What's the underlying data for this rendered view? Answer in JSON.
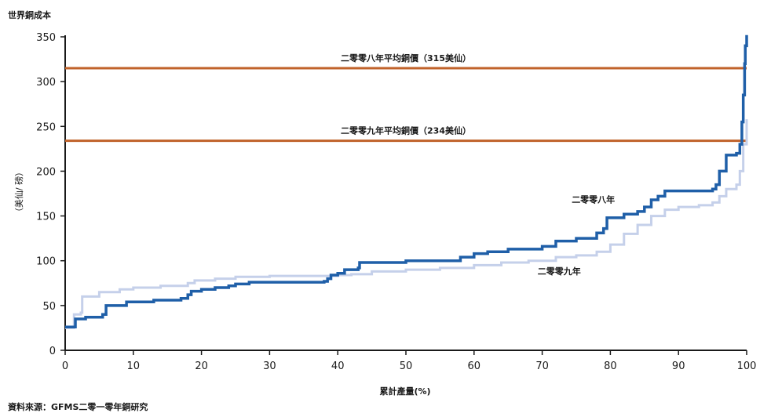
{
  "chart_data": {
    "type": "line",
    "title": "世界銅成本",
    "xlabel": "累計產量(%)",
    "ylabel": "（美仙/ 磅）",
    "source": "資料來源：GFMS二零一零年銅研究",
    "xlim": [
      0,
      100
    ],
    "ylim": [
      0,
      350
    ],
    "x_ticks": [
      "0",
      "10",
      "20",
      "30",
      "40",
      "50",
      "60",
      "70",
      "80",
      "90",
      "100"
    ],
    "y_ticks": [
      "0",
      "50",
      "100",
      "150",
      "200",
      "250",
      "300",
      "350"
    ],
    "grid": false,
    "reference_lines": [
      {
        "label": "二零零八年平均銅價（315美仙）",
        "value": 315,
        "color": "#c0622a"
      },
      {
        "label": "二零零九年平均銅價（234美仙）",
        "value": 234,
        "color": "#c0622a"
      }
    ],
    "series": [
      {
        "name": "二零零八年",
        "color": "#1f5fa8",
        "points": [
          [
            0,
            26
          ],
          [
            1.5,
            26
          ],
          [
            1.5,
            35
          ],
          [
            3,
            37
          ],
          [
            5.5,
            40
          ],
          [
            6,
            50
          ],
          [
            9,
            54
          ],
          [
            13,
            56
          ],
          [
            17,
            58
          ],
          [
            18,
            62
          ],
          [
            18.5,
            66
          ],
          [
            20,
            68
          ],
          [
            22,
            70
          ],
          [
            24,
            72
          ],
          [
            25,
            74
          ],
          [
            27,
            76
          ],
          [
            33,
            76
          ],
          [
            38,
            77
          ],
          [
            38.5,
            80
          ],
          [
            39,
            84
          ],
          [
            40,
            86
          ],
          [
            41,
            90
          ],
          [
            43,
            92
          ],
          [
            43.2,
            98
          ],
          [
            50,
            100
          ],
          [
            55,
            100
          ],
          [
            58,
            104
          ],
          [
            60,
            108
          ],
          [
            62,
            110
          ],
          [
            65,
            113
          ],
          [
            70,
            116
          ],
          [
            72,
            122
          ],
          [
            75,
            125
          ],
          [
            78,
            131
          ],
          [
            79,
            136
          ],
          [
            79.5,
            148
          ],
          [
            82,
            152
          ],
          [
            84,
            155
          ],
          [
            85,
            160
          ],
          [
            86,
            168
          ],
          [
            87,
            172
          ],
          [
            88,
            178
          ],
          [
            95,
            180
          ],
          [
            95.5,
            185
          ],
          [
            96,
            200
          ],
          [
            97,
            218
          ],
          [
            98.5,
            220
          ],
          [
            99,
            230
          ],
          [
            99.3,
            255
          ],
          [
            99.5,
            285
          ],
          [
            99.7,
            320
          ],
          [
            99.8,
            340
          ],
          [
            100,
            352
          ]
        ]
      },
      {
        "name": "二零零九年",
        "color": "#c5d0ea",
        "points": [
          [
            0,
            25
          ],
          [
            1,
            25
          ],
          [
            1.3,
            40
          ],
          [
            2.3,
            42
          ],
          [
            2.5,
            60
          ],
          [
            5,
            65
          ],
          [
            8,
            68
          ],
          [
            10,
            70
          ],
          [
            14,
            72
          ],
          [
            18,
            75
          ],
          [
            19,
            78
          ],
          [
            22,
            80
          ],
          [
            25,
            82
          ],
          [
            30,
            83
          ],
          [
            40,
            84
          ],
          [
            42,
            85
          ],
          [
            45,
            88
          ],
          [
            50,
            90
          ],
          [
            55,
            92
          ],
          [
            60,
            95
          ],
          [
            64,
            98
          ],
          [
            68,
            100
          ],
          [
            72,
            104
          ],
          [
            75,
            106
          ],
          [
            78,
            110
          ],
          [
            80,
            118
          ],
          [
            82,
            130
          ],
          [
            84,
            140
          ],
          [
            86,
            150
          ],
          [
            88,
            157
          ],
          [
            90,
            160
          ],
          [
            93,
            162
          ],
          [
            95,
            165
          ],
          [
            96,
            172
          ],
          [
            97,
            180
          ],
          [
            98.5,
            185
          ],
          [
            99,
            200
          ],
          [
            99.5,
            230
          ],
          [
            100,
            258
          ]
        ]
      }
    ],
    "annotations": [
      {
        "text": "二零零八年",
        "series": "二零零八年"
      },
      {
        "text": "二零零九年",
        "series": "二零零九年"
      }
    ]
  }
}
